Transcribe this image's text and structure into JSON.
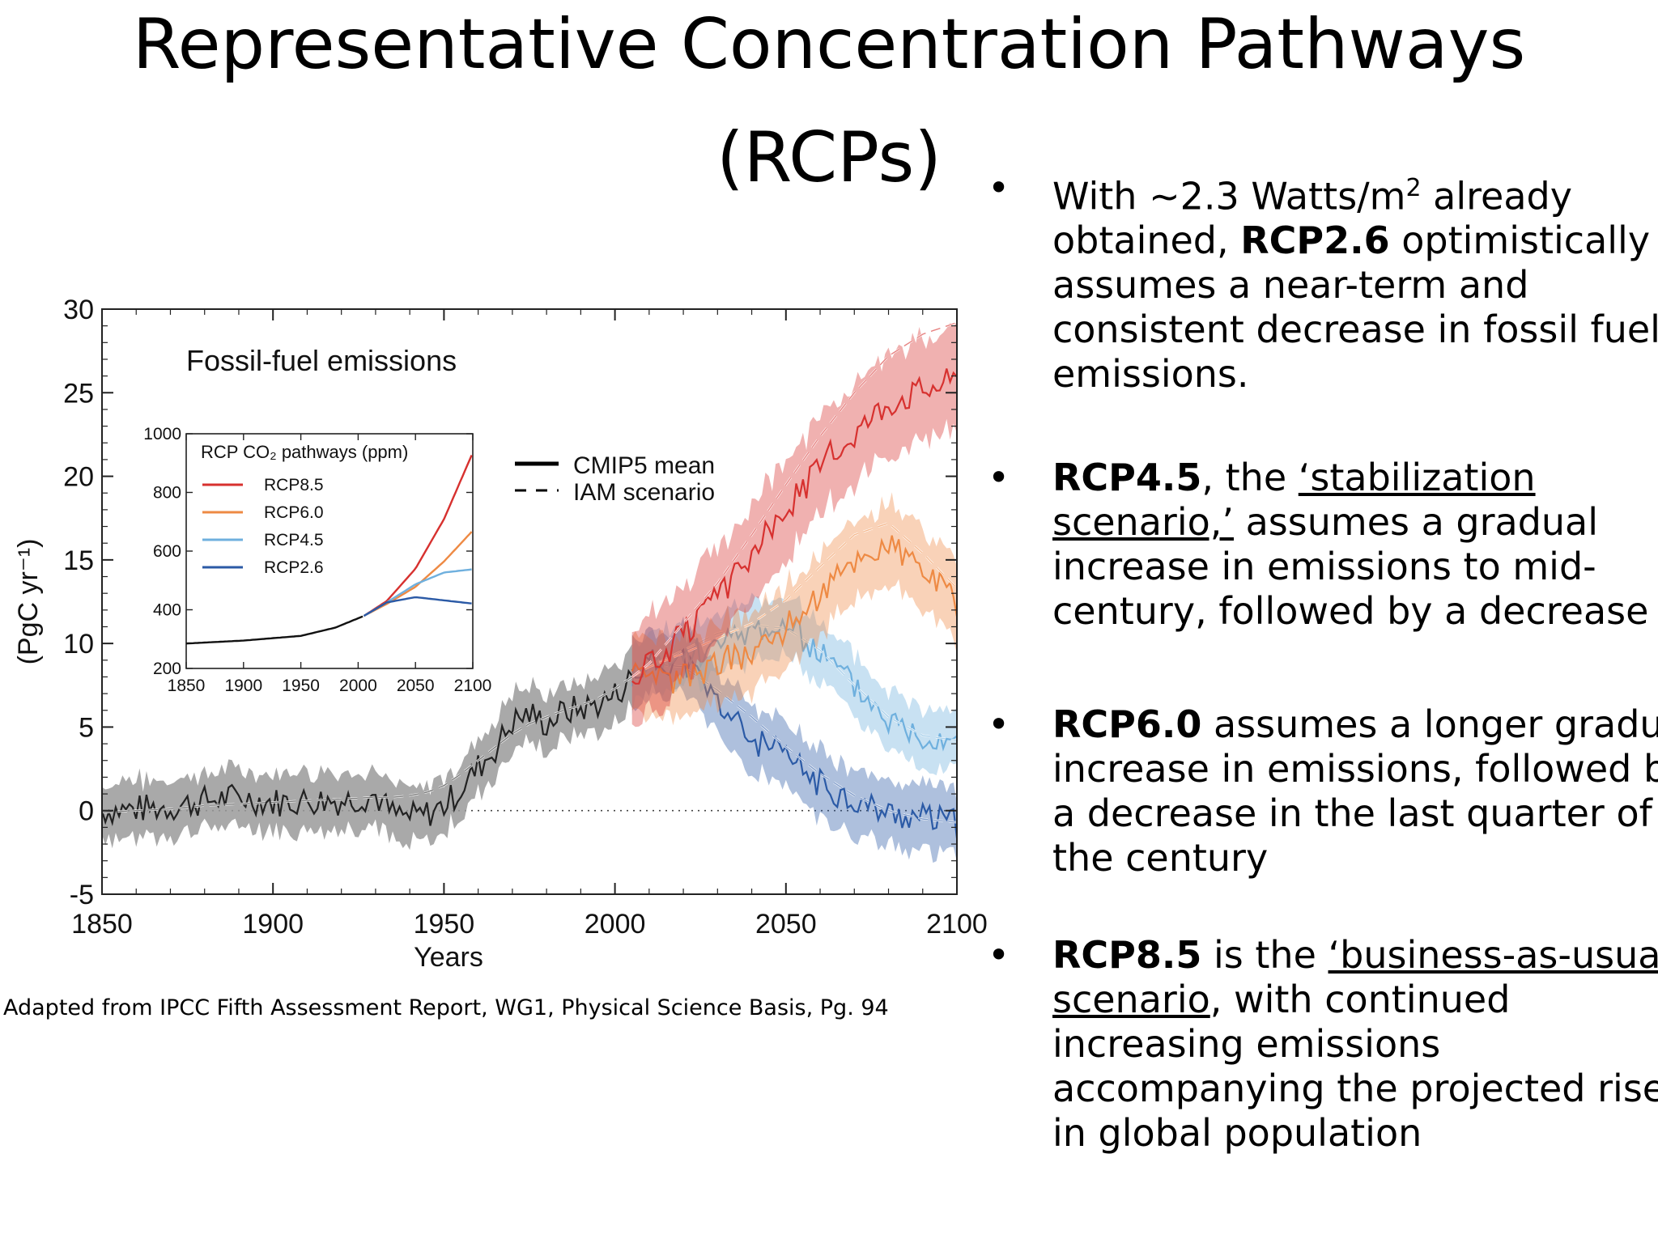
{
  "slide": {
    "title_line1": "Representative Concentration Pathways",
    "title_line2": "(RCPs)",
    "caption": "Adapted from IPCC Fifth Assessment Report, WG1,  Physical Science Basis, Pg. 94"
  },
  "bullets": [
    {
      "dot": "•",
      "pre": "With ~2.3 Watts/m",
      "sup": "2",
      "mid": " already obtained, ",
      "bold": "RCP2.6",
      "after": " optimistically assumes a near-term and consistent decrease in fossil fuel emissions."
    },
    {
      "dot": "•",
      "bold": "RCP4.5",
      "mid": ", the ",
      "underline": "‘stabilization scenario,’",
      "after": " assumes a gradual increase in emissions to mid-century, followed by a decrease"
    },
    {
      "dot": "•",
      "bold": "RCP6.0",
      "after": " assumes a longer gradual increase in emissions, followed by a decrease in the last quarter of the century"
    },
    {
      "dot": "•",
      "bold": "RCP8.5",
      "mid": " is the ",
      "underline": "‘business-as-usual’ scenario",
      "after": ", with continued increasing emissions accompanying the projected rise in global population"
    }
  ],
  "colors": {
    "rcp85": "#d7312f",
    "rcp60": "#ee8a44",
    "rcp45": "#6fb0de",
    "rcp26": "#2b5aa6",
    "hist": "#222222",
    "hist_band": "#9a9a9a"
  },
  "chart_data": [
    {
      "type": "line",
      "title": "Fossil-fuel emissions",
      "xlabel": "Years",
      "ylabel": "(PgC yr⁻¹)",
      "xlim": [
        1850,
        2100
      ],
      "ylim": [
        -5,
        30
      ],
      "xticks": [
        1850,
        1900,
        1950,
        2000,
        2050,
        2100
      ],
      "yticks": [
        -5,
        0,
        5,
        10,
        15,
        20,
        25,
        30
      ],
      "zero_line": "dotted",
      "legend": {
        "solid": "CMIP5 mean",
        "dashed": "IAM scenario",
        "placement": "top-center"
      },
      "historical": {
        "name": "Historical",
        "x": [
          1850,
          1860,
          1870,
          1880,
          1890,
          1900,
          1910,
          1920,
          1930,
          1935,
          1940,
          1945,
          1950,
          1955,
          1960,
          1965,
          1970,
          1975,
          1980,
          1985,
          1990,
          1995,
          2000,
          2005
        ],
        "mean": [
          0,
          0.1,
          0.2,
          0.6,
          0.8,
          0.5,
          0.6,
          0.6,
          0.9,
          -0.2,
          -0.4,
          -0.2,
          0.3,
          1.3,
          2.6,
          3.7,
          5.3,
          5.8,
          5.2,
          5.9,
          6.1,
          6.4,
          6.9,
          8
        ],
        "band": 1.8,
        "iam": [
          -0.1,
          0,
          0.1,
          0.3,
          0.4,
          0.5,
          0.6,
          0.7,
          0.8,
          0.8,
          0.9,
          1.1,
          1.5,
          2.2,
          3,
          3.8,
          4.6,
          5.2,
          5.6,
          6,
          6.3,
          6.7,
          7.3,
          8
        ]
      },
      "series": [
        {
          "name": "RCP8.5",
          "x": [
            2005,
            2010,
            2020,
            2030,
            2040,
            2050,
            2060,
            2070,
            2080,
            2090,
            2100
          ],
          "mean": [
            8.2,
            8.6,
            10.5,
            12.6,
            15.3,
            18,
            20.6,
            22.6,
            24.5,
            25.2,
            25.9
          ],
          "iam": [
            8.0,
            8.8,
            11.2,
            13.6,
            16.5,
            19.5,
            22.4,
            25.0,
            27.2,
            28.5,
            29.2
          ],
          "band": 3.2
        },
        {
          "name": "RCP6.0",
          "x": [
            2005,
            2010,
            2020,
            2030,
            2040,
            2050,
            2060,
            2070,
            2080,
            2090,
            2100
          ],
          "mean": [
            8.0,
            7.6,
            8.0,
            8.8,
            9.5,
            11,
            13,
            15,
            16,
            14.5,
            12.5
          ],
          "iam": [
            8.0,
            8.6,
            9.4,
            10.3,
            11.2,
            12.6,
            14.6,
            16.5,
            17.2,
            15.4,
            13.3
          ],
          "band": 2.6
        },
        {
          "name": "RCP4.5",
          "x": [
            2005,
            2010,
            2020,
            2030,
            2040,
            2050,
            2060,
            2070,
            2080,
            2090,
            2100
          ],
          "mean": [
            8.1,
            8.5,
            9.3,
            9.8,
            10.9,
            11,
            9.5,
            7.5,
            5.5,
            4.5,
            4.5
          ],
          "iam": [
            8.0,
            8.6,
            9.6,
            10.6,
            11.1,
            10.9,
            9.6,
            7.5,
            5.6,
            4.5,
            4.2
          ],
          "band": 1.9
        },
        {
          "name": "RCP2.6",
          "x": [
            2005,
            2010,
            2020,
            2030,
            2040,
            2050,
            2060,
            2070,
            2080,
            2090,
            2100
          ],
          "mean": [
            8.2,
            8.8,
            9,
            6.5,
            4.2,
            3.2,
            1.6,
            0.6,
            -0.2,
            -0.4,
            -0.8
          ],
          "iam": [
            8.0,
            8.8,
            8.6,
            7.2,
            5.6,
            3.8,
            2.2,
            0.9,
            0.0,
            -0.5,
            -0.7
          ],
          "band": 2.1
        }
      ]
    },
    {
      "type": "line",
      "title": "RCP CO₂ pathways (ppm)",
      "xlim": [
        1850,
        2100
      ],
      "ylim": [
        200,
        1000
      ],
      "xticks": [
        1850,
        1900,
        1950,
        2000,
        2050,
        2100
      ],
      "yticks": [
        200,
        400,
        600,
        800,
        1000
      ],
      "legend": {
        "placement": "top-left"
      },
      "historical": {
        "x": [
          1850,
          1900,
          1950,
          1980,
          2005
        ],
        "y": [
          285,
          295,
          311,
          339,
          379
        ]
      },
      "series": [
        {
          "name": "RCP8.5",
          "x": [
            2005,
            2025,
            2050,
            2075,
            2100
          ],
          "y": [
            379,
            430,
            540,
            710,
            936
          ]
        },
        {
          "name": "RCP6.0",
          "x": [
            2005,
            2025,
            2050,
            2075,
            2100
          ],
          "y": [
            379,
            420,
            478,
            565,
            670
          ]
        },
        {
          "name": "RCP4.5",
          "x": [
            2005,
            2025,
            2050,
            2075,
            2100
          ],
          "y": [
            379,
            425,
            487,
            527,
            538
          ]
        },
        {
          "name": "RCP2.6",
          "x": [
            2005,
            2025,
            2050,
            2075,
            2100
          ],
          "y": [
            379,
            425,
            443,
            432,
            421
          ]
        }
      ]
    }
  ]
}
